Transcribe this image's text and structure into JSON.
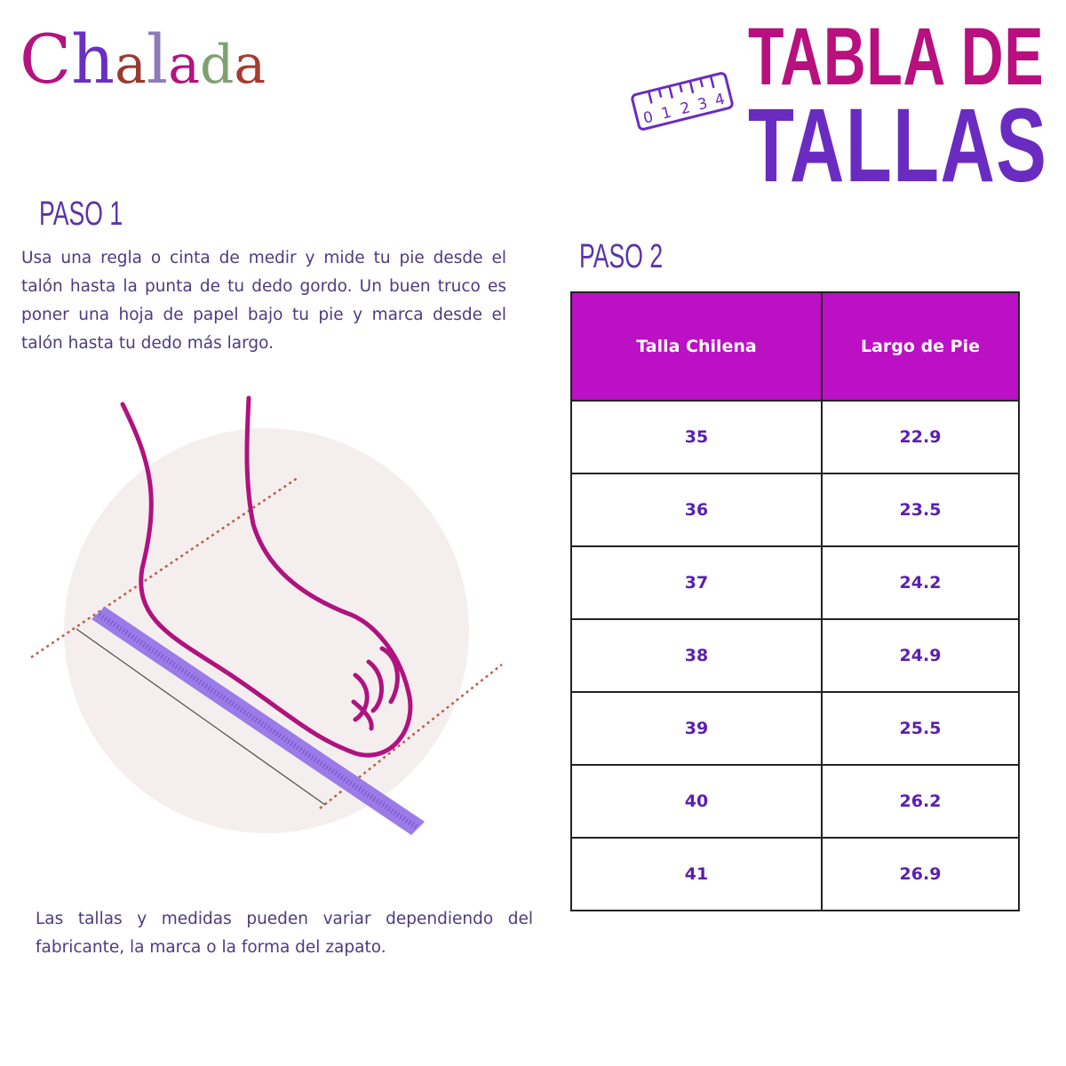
{
  "brand": {
    "logo": "Chalada",
    "logo_colors": [
      "#b3127f",
      "#6a2fc0",
      "#9a3a2e",
      "#8d7cb8",
      "#b3127f",
      "#a83a30",
      "#7fa070",
      "#9a3a2e"
    ]
  },
  "header": {
    "title_line1": "TABLA DE",
    "title_line2": "TALLAS",
    "ruler_digits": [
      "0",
      "1",
      "2",
      "3",
      "4"
    ]
  },
  "step1": {
    "heading": "PASO 1",
    "instructions": "Usa una regla o cinta de medir y mide tu pie desde el talón hasta la punta de tu dedo gordo. Un buen truco es poner una hoja de papel bajo tu pie y marca desde el talón hasta tu dedo más largo.",
    "illustration": "foot-measuring-ruler-illustration"
  },
  "step2": {
    "heading": "PASO 2",
    "table": {
      "columns": [
        "Talla Chilena",
        "Largo de Pie"
      ],
      "rows": [
        [
          "35",
          "22.9"
        ],
        [
          "36",
          "23.5"
        ],
        [
          "37",
          "24.2"
        ],
        [
          "38",
          "24.9"
        ],
        [
          "39",
          "25.5"
        ],
        [
          "40",
          "26.2"
        ],
        [
          "41",
          "26.9"
        ]
      ]
    }
  },
  "note": "Las tallas y medidas pueden variar dependiendo del fabricante, la marca o la forma del zapato.",
  "colors": {
    "magenta": "#b8107e",
    "purple": "#6a2cc0",
    "table_header": "#bb10c4",
    "text": "#4e3a80"
  }
}
